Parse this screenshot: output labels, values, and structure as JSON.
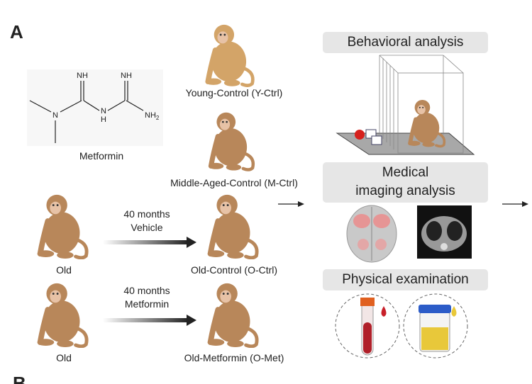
{
  "panel_label": "A",
  "next_panel_label": "B",
  "metformin": {
    "label": "Metformin",
    "atoms": {
      "nh_left": "NH",
      "nh_right": "NH",
      "n_left": "N",
      "n_mid": "N",
      "h_mid": "H",
      "nh2": "NH",
      "nh2_sub": "2"
    }
  },
  "groups": {
    "young": "Young-Control (Y-Ctrl)",
    "middle": "Middle-Aged-Control (M-Ctrl)",
    "old_control": "Old-Control (O-Ctrl)",
    "old_metformin": "Old-Metformin (O-Met)",
    "old_1": "Old",
    "old_2": "Old"
  },
  "treatments": {
    "vehicle": {
      "duration": "40 months",
      "agent": "Vehicle"
    },
    "metformin": {
      "duration": "40 months",
      "agent": "Metformin"
    }
  },
  "analyses": {
    "behavioral": "Behavioral analysis",
    "imaging_line1": "Medical",
    "imaging_line2": "imaging analysis",
    "physical": "Physical examination"
  },
  "colors": {
    "monkey_young": "#d3a468",
    "monkey_adult": "#b8875a",
    "box_bg": "#e6e6e6",
    "blood": "#b0202a",
    "urine": "#e8c83a"
  }
}
